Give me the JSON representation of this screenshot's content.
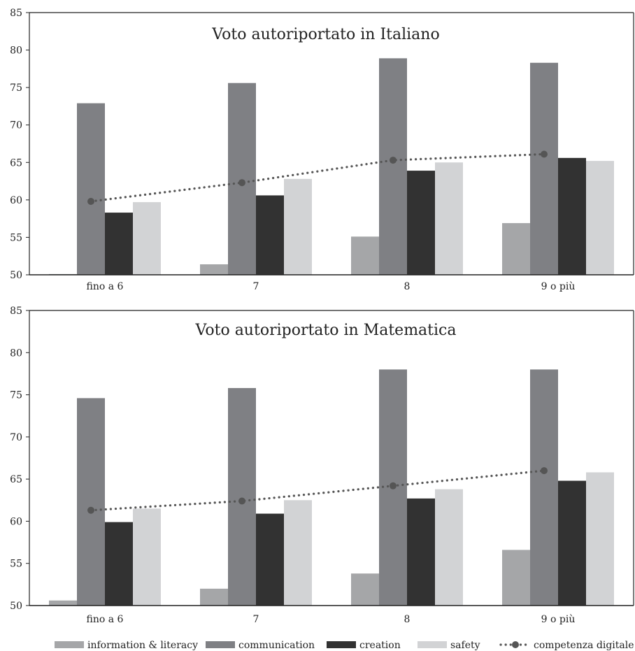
{
  "chart_data": [
    {
      "type": "bar",
      "title": "Voto autoriportato in Italiano",
      "xlabel": "",
      "ylabel": "",
      "ylim": [
        50,
        85
      ],
      "yticks": [
        50,
        55,
        60,
        65,
        70,
        75,
        80,
        85
      ],
      "categories": [
        "fino a 6",
        "7",
        "8",
        "9 o più"
      ],
      "series": [
        {
          "name": "information & literacy",
          "values": [
            50.1,
            51.4,
            55.1,
            56.9
          ]
        },
        {
          "name": "communication",
          "values": [
            72.9,
            75.6,
            78.9,
            78.3
          ]
        },
        {
          "name": "creation",
          "values": [
            58.3,
            60.6,
            63.9,
            65.6
          ]
        },
        {
          "name": "safety",
          "values": [
            59.7,
            62.8,
            65.0,
            65.2
          ]
        }
      ],
      "line": {
        "name": "competenza digitale",
        "values": [
          59.8,
          62.3,
          65.3,
          66.1
        ]
      },
      "grid": false
    },
    {
      "type": "bar",
      "title": "Voto autoriportato in Matematica",
      "xlabel": "",
      "ylabel": "",
      "ylim": [
        50,
        85
      ],
      "yticks": [
        50,
        55,
        60,
        65,
        70,
        75,
        80,
        85
      ],
      "categories": [
        "fino a 6",
        "7",
        "8",
        "9 o più"
      ],
      "series": [
        {
          "name": "information & literacy",
          "values": [
            50.6,
            52.0,
            53.8,
            56.6
          ]
        },
        {
          "name": "communication",
          "values": [
            74.6,
            75.8,
            78.0,
            78.0
          ]
        },
        {
          "name": "creation",
          "values": [
            59.9,
            60.9,
            62.7,
            64.8
          ]
        },
        {
          "name": "safety",
          "values": [
            61.5,
            62.5,
            63.8,
            65.8
          ]
        }
      ],
      "line": {
        "name": "competenza digitale",
        "values": [
          61.3,
          62.4,
          64.2,
          66.0
        ]
      },
      "grid": false
    }
  ],
  "legend": {
    "position": "bottom",
    "items": [
      {
        "label": "information & literacy",
        "kind": "bar",
        "color": "#a5a6a8"
      },
      {
        "label": "communication",
        "kind": "bar",
        "color": "#7f8084"
      },
      {
        "label": "creation",
        "kind": "bar",
        "color": "#323232"
      },
      {
        "label": "safety",
        "kind": "bar",
        "color": "#d2d3d5"
      },
      {
        "label": "competenza digitale",
        "kind": "line",
        "color": "#555555"
      }
    ]
  },
  "colors": {
    "series": [
      "#a5a6a8",
      "#7f8084",
      "#323232",
      "#d2d3d5"
    ],
    "line": "#555555",
    "axis": "#222222"
  }
}
